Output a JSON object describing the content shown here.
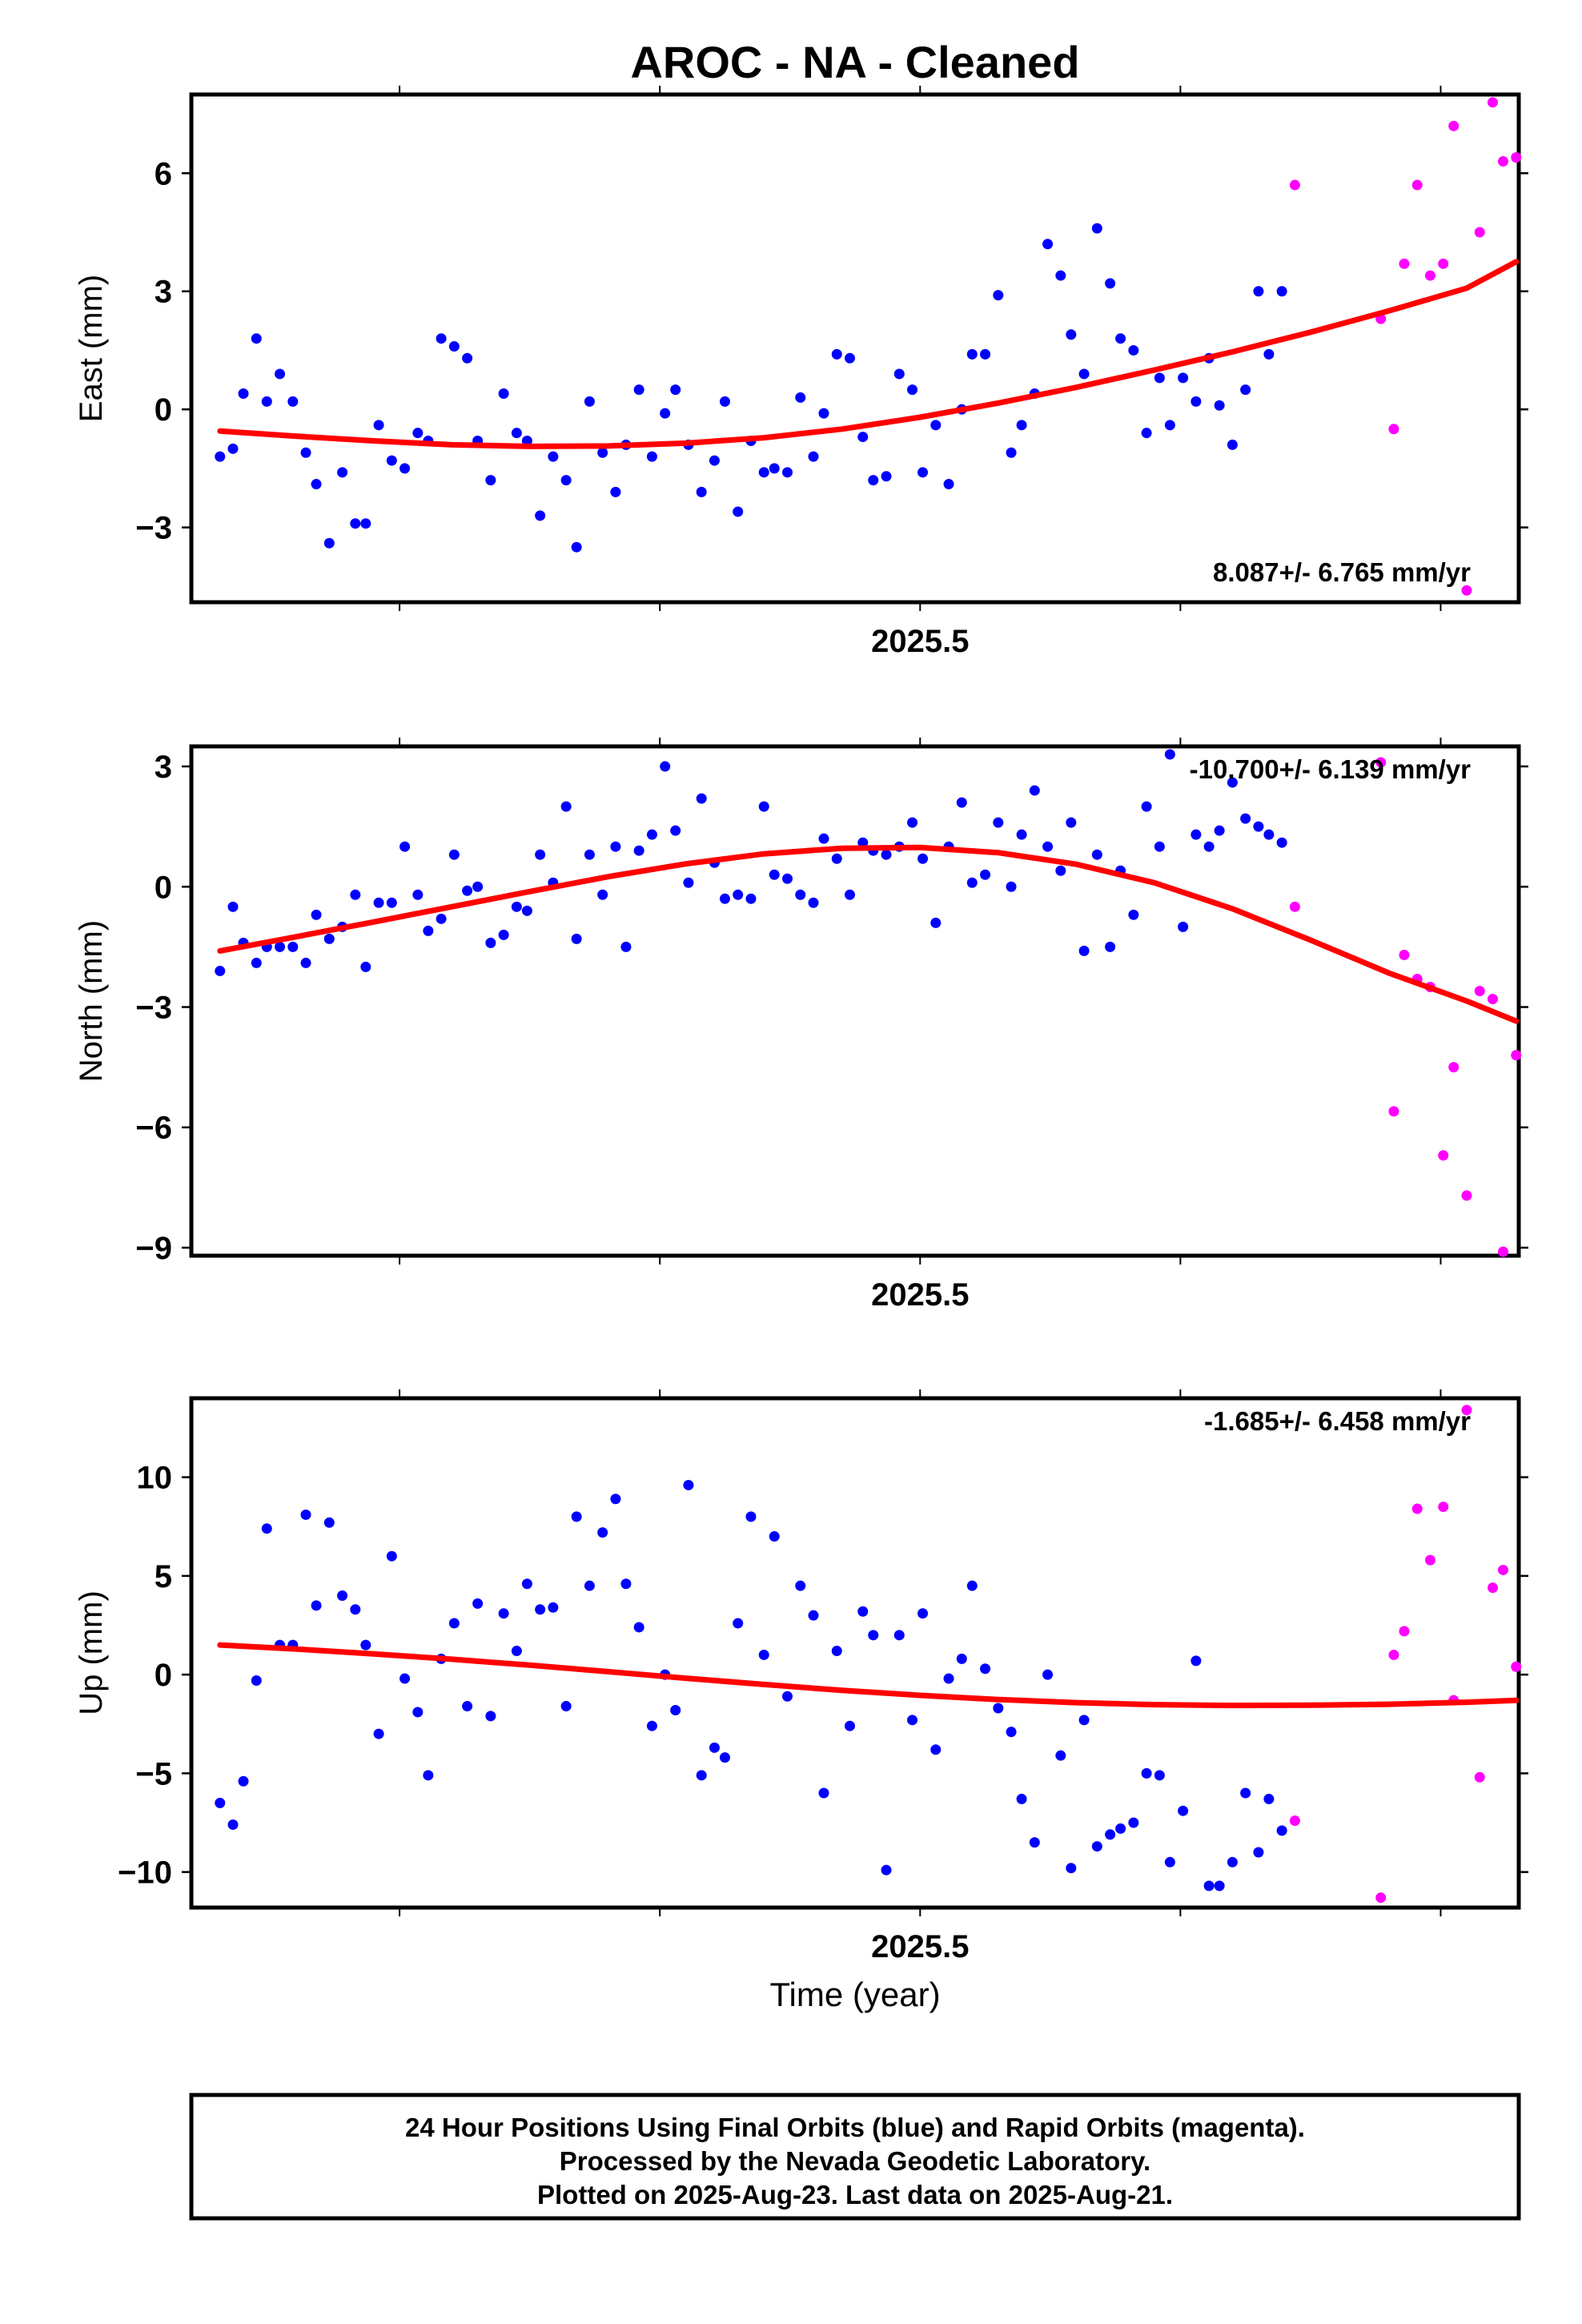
{
  "title": "AROC  - NA - Cleaned",
  "x_label": "Time (year)",
  "caption": {
    "lines": [
      "24 Hour Positions Using Final Orbits (blue) and Rapid Orbits (magenta).",
      "Processed by the Nevada Geodetic Laboratory.",
      "Plotted on 2025-Aug-23. Last data on 2025-Aug-21."
    ]
  },
  "colors": {
    "final": "#0000ff",
    "rapid": "#ff00ff",
    "fit": "#ff0000"
  },
  "chart_data": [
    {
      "type": "scatter",
      "panel": "east",
      "ylabel": "East (mm)",
      "xlim": [
        2025.22,
        2025.73
      ],
      "ylim": [
        -4.9,
        8.0
      ],
      "x_ticks": [
        2025.5
      ],
      "x_tick_labels": [
        "2025.5"
      ],
      "y_ticks": [
        -3,
        0,
        3,
        6
      ],
      "y_tick_labels": [
        "−3",
        "0",
        "3",
        "6"
      ],
      "rate_label": "8.087+/- 6.765 mm/yr",
      "rate_position": "bottom-right",
      "series": [
        {
          "role": "final",
          "x": [
            2025.231,
            2025.236,
            2025.24,
            2025.245,
            2025.249,
            2025.254,
            2025.259,
            2025.264,
            2025.268,
            2025.273,
            2025.278,
            2025.283,
            2025.287,
            2025.292,
            2025.297,
            2025.302,
            2025.307,
            2025.311,
            2025.316,
            2025.321,
            2025.326,
            2025.33,
            2025.335,
            2025.34,
            2025.345,
            2025.349,
            2025.354,
            2025.359,
            2025.364,
            2025.368,
            2025.373,
            2025.378,
            2025.383,
            2025.387,
            2025.392,
            2025.397,
            2025.402,
            2025.406,
            2025.411,
            2025.416,
            2025.421,
            2025.425,
            2025.43,
            2025.435,
            2025.44,
            2025.444,
            2025.449,
            2025.454,
            2025.459,
            2025.463,
            2025.468,
            2025.473,
            2025.478,
            2025.482,
            2025.487,
            2025.492,
            2025.497,
            2025.501,
            2025.506,
            2025.511,
            2025.516,
            2025.52,
            2025.525,
            2025.53,
            2025.535,
            2025.539,
            2025.544,
            2025.549,
            2025.554,
            2025.558,
            2025.563,
            2025.568,
            2025.573,
            2025.577,
            2025.582,
            2025.587,
            2025.592,
            2025.596,
            2025.601,
            2025.606,
            2025.611,
            2025.615,
            2025.62,
            2025.625,
            2025.63,
            2025.634
          ],
          "y": [
            -1.2,
            -1.0,
            0.4,
            1.8,
            0.2,
            0.9,
            0.2,
            -1.1,
            -1.9,
            -3.4,
            -1.6,
            -2.9,
            -2.9,
            -0.4,
            -1.3,
            -1.5,
            -0.6,
            -0.8,
            1.8,
            1.6,
            1.3,
            -0.8,
            -1.8,
            0.4,
            -0.6,
            -0.8,
            -2.7,
            -1.2,
            -1.8,
            -3.5,
            0.2,
            -1.1,
            -2.1,
            -0.9,
            0.5,
            -1.2,
            -0.1,
            0.5,
            -0.9,
            -2.1,
            -1.3,
            0.2,
            -2.6,
            -0.8,
            -1.6,
            -1.5,
            -1.6,
            0.3,
            -1.2,
            -0.1,
            1.4,
            1.3,
            -0.7,
            -1.8,
            -1.7,
            0.9,
            0.5,
            -1.6,
            -0.4,
            -1.9,
            0.0,
            1.4,
            1.4,
            2.9,
            -1.1,
            -0.4,
            0.4,
            4.2,
            3.4,
            1.9,
            0.9,
            4.6,
            3.2,
            1.8,
            1.5,
            -0.6,
            0.8,
            -0.4,
            0.8,
            0.2,
            1.3,
            0.1,
            -0.9,
            0.5,
            3.0,
            1.4
          ]
        },
        {
          "role": "final",
          "x": [
            2025.639
          ],
          "y": [
            3.0
          ]
        },
        {
          "role": "rapid",
          "x": [
            2025.644,
            2025.677,
            2025.682,
            2025.686,
            2025.691,
            2025.696,
            2025.701,
            2025.705,
            2025.71,
            2025.715,
            2025.72,
            2025.724,
            2025.729
          ],
          "y": [
            5.7,
            2.3,
            -0.5,
            3.7,
            5.7,
            3.4,
            3.7,
            7.2,
            -4.6,
            4.5,
            7.8,
            6.3,
            6.4
          ]
        },
        {
          "role": "fit",
          "x": [
            2025.231,
            2025.26,
            2025.29,
            2025.32,
            2025.35,
            2025.38,
            2025.41,
            2025.44,
            2025.47,
            2025.5,
            2025.53,
            2025.56,
            2025.59,
            2025.62,
            2025.65,
            2025.68,
            2025.71,
            2025.729
          ],
          "y": [
            -0.55,
            -0.68,
            -0.8,
            -0.9,
            -0.94,
            -0.93,
            -0.86,
            -0.72,
            -0.5,
            -0.2,
            0.16,
            0.56,
            1.0,
            1.46,
            1.96,
            2.5,
            3.08,
            3.75
          ]
        }
      ]
    },
    {
      "type": "scatter",
      "panel": "north",
      "ylabel": "North (mm)",
      "xlim": [
        2025.22,
        2025.73
      ],
      "ylim": [
        -9.2,
        3.5
      ],
      "x_ticks": [
        2025.5
      ],
      "x_tick_labels": [
        "2025.5"
      ],
      "y_ticks": [
        -9,
        -6,
        -3,
        0,
        3
      ],
      "y_tick_labels": [
        "−9",
        "−6",
        "−3",
        "0",
        "3"
      ],
      "rate_label": "-10.700+/- 6.139 mm/yr",
      "rate_position": "top-right",
      "series": [
        {
          "role": "final",
          "x": [
            2025.231,
            2025.236,
            2025.24,
            2025.245,
            2025.249,
            2025.254,
            2025.259,
            2025.264,
            2025.268,
            2025.273,
            2025.278,
            2025.283,
            2025.287,
            2025.292,
            2025.297,
            2025.302,
            2025.307,
            2025.311,
            2025.316,
            2025.321,
            2025.326,
            2025.33,
            2025.335,
            2025.34,
            2025.345,
            2025.349,
            2025.354,
            2025.359,
            2025.364,
            2025.368,
            2025.373,
            2025.378,
            2025.383,
            2025.387,
            2025.392,
            2025.397,
            2025.402,
            2025.406,
            2025.411,
            2025.416,
            2025.421,
            2025.425,
            2025.43,
            2025.435,
            2025.44,
            2025.444,
            2025.449,
            2025.454,
            2025.459,
            2025.463,
            2025.468,
            2025.473,
            2025.478,
            2025.482,
            2025.487,
            2025.492,
            2025.497,
            2025.501,
            2025.506,
            2025.511,
            2025.516,
            2025.52,
            2025.525,
            2025.53,
            2025.535,
            2025.539,
            2025.544,
            2025.549,
            2025.554,
            2025.558,
            2025.563,
            2025.568,
            2025.573,
            2025.577,
            2025.582,
            2025.587,
            2025.592,
            2025.596,
            2025.601,
            2025.606,
            2025.611,
            2025.615,
            2025.62,
            2025.625,
            2025.63,
            2025.634
          ],
          "y": [
            -2.1,
            -0.5,
            -1.4,
            -1.9,
            -1.5,
            -1.5,
            -1.5,
            -1.9,
            -0.7,
            -1.3,
            -1.0,
            -0.2,
            -2.0,
            -0.4,
            -0.4,
            1.0,
            -0.2,
            -1.1,
            -0.8,
            0.8,
            -0.1,
            0.0,
            -1.4,
            -1.2,
            -0.5,
            -0.6,
            0.8,
            0.1,
            2.0,
            -1.3,
            0.8,
            -0.2,
            1.0,
            -1.5,
            0.9,
            1.3,
            3.0,
            1.4,
            0.1,
            2.2,
            0.6,
            -0.3,
            -0.2,
            -0.3,
            2.0,
            0.3,
            0.2,
            -0.2,
            -0.4,
            1.2,
            0.7,
            -0.2,
            1.1,
            0.9,
            0.8,
            1.0,
            1.6,
            0.7,
            -0.9,
            1.0,
            2.1,
            0.1,
            0.3,
            1.6,
            0.0,
            1.3,
            2.4,
            1.0,
            0.4,
            1.6,
            -1.6,
            0.8,
            -1.5,
            0.4,
            -0.7,
            2.0,
            1.0,
            3.3,
            -1.0,
            1.3,
            1.0,
            1.4,
            2.6,
            1.7,
            1.5,
            1.3
          ]
        },
        {
          "role": "final",
          "x": [
            2025.639
          ],
          "y": [
            1.1
          ]
        },
        {
          "role": "rapid",
          "x": [
            2025.644,
            2025.677,
            2025.682,
            2025.686,
            2025.691,
            2025.696,
            2025.701,
            2025.705,
            2025.71,
            2025.715,
            2025.72,
            2025.724,
            2025.729
          ],
          "y": [
            -0.5,
            3.1,
            -5.6,
            -1.7,
            -2.3,
            -2.5,
            -6.7,
            -4.5,
            -7.7,
            -2.6,
            -2.8,
            -9.1,
            -4.2
          ]
        },
        {
          "role": "fit",
          "x": [
            2025.231,
            2025.26,
            2025.29,
            2025.32,
            2025.35,
            2025.38,
            2025.41,
            2025.44,
            2025.47,
            2025.5,
            2025.53,
            2025.56,
            2025.59,
            2025.62,
            2025.65,
            2025.68,
            2025.71,
            2025.729
          ],
          "y": [
            -1.6,
            -1.25,
            -0.88,
            -0.5,
            -0.12,
            0.25,
            0.57,
            0.82,
            0.96,
            0.98,
            0.85,
            0.56,
            0.1,
            -0.55,
            -1.33,
            -2.15,
            -2.85,
            -3.35
          ]
        }
      ]
    },
    {
      "type": "scatter",
      "panel": "up",
      "ylabel": "Up (mm)",
      "xlim": [
        2025.22,
        2025.73
      ],
      "ylim": [
        -11.8,
        14.0
      ],
      "x_ticks": [
        2025.5
      ],
      "x_tick_labels": [
        "2025.5"
      ],
      "y_ticks": [
        -10,
        -5,
        0,
        5,
        10
      ],
      "y_tick_labels": [
        "−10",
        "−5",
        "0",
        "5",
        "10"
      ],
      "rate_label": "-1.685+/- 6.458 mm/yr",
      "rate_position": "top-right",
      "series": [
        {
          "role": "final",
          "x": [
            2025.231,
            2025.236,
            2025.24,
            2025.245,
            2025.249,
            2025.254,
            2025.259,
            2025.264,
            2025.268,
            2025.273,
            2025.278,
            2025.283,
            2025.287,
            2025.292,
            2025.297,
            2025.302,
            2025.307,
            2025.311,
            2025.316,
            2025.321,
            2025.326,
            2025.33,
            2025.335,
            2025.34,
            2025.345,
            2025.349,
            2025.354,
            2025.359,
            2025.364,
            2025.368,
            2025.373,
            2025.378,
            2025.383,
            2025.387,
            2025.392,
            2025.397,
            2025.402,
            2025.406,
            2025.411,
            2025.416,
            2025.421,
            2025.425,
            2025.43,
            2025.435,
            2025.44,
            2025.444,
            2025.449,
            2025.454,
            2025.459,
            2025.463,
            2025.468,
            2025.473,
            2025.478,
            2025.482,
            2025.487,
            2025.492,
            2025.497,
            2025.501,
            2025.506,
            2025.511,
            2025.516,
            2025.52,
            2025.525,
            2025.53,
            2025.535,
            2025.539,
            2025.544,
            2025.549,
            2025.554,
            2025.558,
            2025.563,
            2025.568,
            2025.573,
            2025.577,
            2025.582,
            2025.587,
            2025.592,
            2025.596,
            2025.601,
            2025.606,
            2025.611,
            2025.615,
            2025.62,
            2025.625,
            2025.63,
            2025.634
          ],
          "y": [
            -6.5,
            -7.6,
            -5.4,
            -0.3,
            7.4,
            1.5,
            1.5,
            8.1,
            3.5,
            7.7,
            4.0,
            3.3,
            1.5,
            -3.0,
            6.0,
            -0.2,
            -1.9,
            -5.1,
            0.8,
            2.6,
            -1.6,
            3.6,
            -2.1,
            3.1,
            1.2,
            4.6,
            3.3,
            3.4,
            -1.6,
            8.0,
            4.5,
            7.2,
            8.9,
            4.6,
            2.4,
            -2.6,
            0.0,
            -1.8,
            9.6,
            -5.1,
            -3.7,
            -4.2,
            2.6,
            8.0,
            1.0,
            7.0,
            -1.1,
            4.5,
            3.0,
            -6.0,
            1.2,
            -2.6,
            3.2,
            2.0,
            -9.9,
            2.0,
            -2.3,
            3.1,
            -3.8,
            -0.2,
            0.8,
            4.5,
            0.3,
            -1.7,
            -2.9,
            -6.3,
            -8.5,
            0.0,
            -4.1,
            -9.8,
            -2.3,
            -8.7,
            -8.1,
            -7.8,
            -7.5,
            -5.0,
            -5.1,
            -9.5,
            -6.9,
            0.7,
            -10.7,
            -10.7,
            -9.5,
            -6.0,
            -9.0,
            -6.3
          ]
        },
        {
          "role": "final",
          "x": [
            2025.639
          ],
          "y": [
            -7.9
          ]
        },
        {
          "role": "rapid",
          "x": [
            2025.644,
            2025.677,
            2025.682,
            2025.686,
            2025.691,
            2025.696,
            2025.701,
            2025.705,
            2025.71,
            2025.715,
            2025.72,
            2025.724,
            2025.729
          ],
          "y": [
            -7.4,
            -11.3,
            1.0,
            2.2,
            8.4,
            5.8,
            8.5,
            -1.3,
            13.4,
            -5.2,
            4.4,
            5.3,
            0.4
          ]
        },
        {
          "role": "fit",
          "x": [
            2025.231,
            2025.26,
            2025.29,
            2025.32,
            2025.35,
            2025.38,
            2025.41,
            2025.44,
            2025.47,
            2025.5,
            2025.53,
            2025.56,
            2025.59,
            2025.62,
            2025.65,
            2025.68,
            2025.71,
            2025.729
          ],
          "y": [
            1.5,
            1.3,
            1.05,
            0.78,
            0.48,
            0.15,
            -0.18,
            -0.5,
            -0.8,
            -1.05,
            -1.26,
            -1.42,
            -1.52,
            -1.56,
            -1.55,
            -1.5,
            -1.4,
            -1.3
          ]
        }
      ]
    }
  ]
}
